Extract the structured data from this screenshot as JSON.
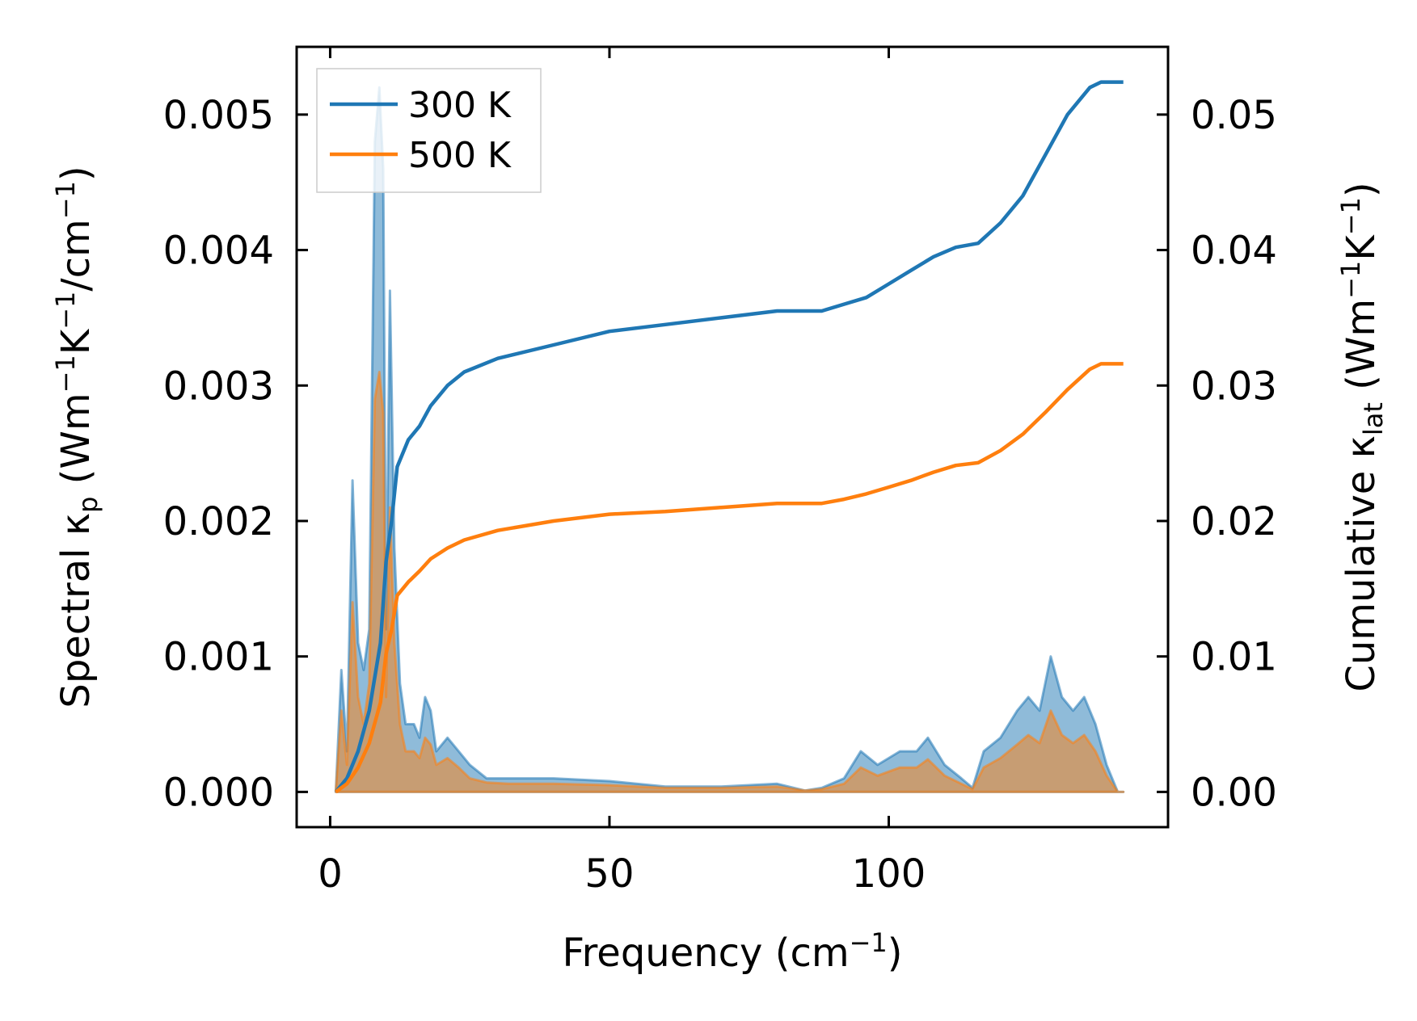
{
  "chart_data": {
    "type": "line",
    "xlabel": "Frequency (cm⁻¹)",
    "ylabel_left": "Spectral κₚ (Wm⁻¹K⁻¹/cm⁻¹)",
    "ylabel_right": "Cumulative κ_lat (Wm⁻¹K⁻¹)",
    "xlim": [
      -6,
      150
    ],
    "ylim_left": [
      -0.00026,
      0.0055
    ],
    "ylim_right": [
      -0.0026,
      0.055
    ],
    "xticks": [
      0,
      50,
      100
    ],
    "xtick_labels": [
      "0",
      "50",
      "100"
    ],
    "yticks_left": [
      0,
      0.001,
      0.002,
      0.003,
      0.004,
      0.005
    ],
    "ytick_labels_left": [
      "0.000",
      "0.001",
      "0.002",
      "0.003",
      "0.004",
      "0.005"
    ],
    "yticks_right": [
      0,
      0.01,
      0.02,
      0.03,
      0.04,
      0.05
    ],
    "ytick_labels_right": [
      "0.00",
      "0.01",
      "0.02",
      "0.03",
      "0.04",
      "0.05"
    ],
    "legend_position": "top-left",
    "grid": false,
    "series": [
      {
        "name": "300 K",
        "color": "#1f77b4",
        "spectral": [
          [
            1,
            0
          ],
          [
            2,
            0.0009
          ],
          [
            3,
            0.0003
          ],
          [
            4,
            0.0023
          ],
          [
            5,
            0.0011
          ],
          [
            6,
            0.0009
          ],
          [
            7,
            0.0012
          ],
          [
            8,
            0.0048
          ],
          [
            8.8,
            0.0052
          ],
          [
            9.5,
            0.0046
          ],
          [
            10,
            0.0012
          ],
          [
            10.7,
            0.0037
          ],
          [
            11.5,
            0.0018
          ],
          [
            12.5,
            0.0008
          ],
          [
            13.5,
            0.0005
          ],
          [
            15,
            0.0005
          ],
          [
            16,
            0.0004
          ],
          [
            17,
            0.0007
          ],
          [
            18,
            0.0006
          ],
          [
            19,
            0.0003
          ],
          [
            21,
            0.0004
          ],
          [
            23,
            0.0003
          ],
          [
            25,
            0.0002
          ],
          [
            28,
            0.0001
          ],
          [
            32,
            0.0001
          ],
          [
            40,
            0.0001
          ],
          [
            50,
            8e-05
          ],
          [
            60,
            4e-05
          ],
          [
            70,
            4e-05
          ],
          [
            80,
            6e-05
          ],
          [
            85,
            1e-05
          ],
          [
            88,
            3e-05
          ],
          [
            92,
            0.0001
          ],
          [
            95,
            0.0003
          ],
          [
            98,
            0.0002
          ],
          [
            102,
            0.0003
          ],
          [
            105,
            0.0003
          ],
          [
            107,
            0.0004
          ],
          [
            110,
            0.0002
          ],
          [
            113,
            0.0001
          ],
          [
            115,
            3e-05
          ],
          [
            117,
            0.0003
          ],
          [
            120,
            0.0004
          ],
          [
            123,
            0.0006
          ],
          [
            125,
            0.0007
          ],
          [
            127,
            0.0006
          ],
          [
            129,
            0.001
          ],
          [
            131,
            0.0007
          ],
          [
            133,
            0.0006
          ],
          [
            135,
            0.0007
          ],
          [
            137,
            0.0005
          ],
          [
            139,
            0.0002
          ],
          [
            141,
            0
          ],
          [
            142,
            0
          ]
        ],
        "cumulative": [
          [
            1,
            0
          ],
          [
            3,
            0.001
          ],
          [
            5,
            0.003
          ],
          [
            7,
            0.006
          ],
          [
            9,
            0.011
          ],
          [
            10,
            0.017
          ],
          [
            11,
            0.02
          ],
          [
            12,
            0.024
          ],
          [
            14,
            0.026
          ],
          [
            16,
            0.027
          ],
          [
            18,
            0.0285
          ],
          [
            21,
            0.03
          ],
          [
            24,
            0.031
          ],
          [
            30,
            0.032
          ],
          [
            40,
            0.033
          ],
          [
            50,
            0.034
          ],
          [
            60,
            0.0345
          ],
          [
            70,
            0.035
          ],
          [
            80,
            0.0355
          ],
          [
            88,
            0.0355
          ],
          [
            92,
            0.036
          ],
          [
            96,
            0.0365
          ],
          [
            100,
            0.0375
          ],
          [
            104,
            0.0385
          ],
          [
            108,
            0.0395
          ],
          [
            112,
            0.0402
          ],
          [
            116,
            0.0405
          ],
          [
            120,
            0.042
          ],
          [
            124,
            0.044
          ],
          [
            128,
            0.047
          ],
          [
            132,
            0.05
          ],
          [
            136,
            0.052
          ],
          [
            138,
            0.0524
          ],
          [
            142,
            0.0524
          ]
        ]
      },
      {
        "name": "500 K",
        "color": "#ff7f0e",
        "spectral": [
          [
            1,
            0
          ],
          [
            2,
            0.0006
          ],
          [
            3,
            0.0002
          ],
          [
            4,
            0.0014
          ],
          [
            5,
            0.0007
          ],
          [
            6,
            0.0005
          ],
          [
            7,
            0.0008
          ],
          [
            8,
            0.0029
          ],
          [
            8.8,
            0.0031
          ],
          [
            9.5,
            0.0028
          ],
          [
            10,
            0.0007
          ],
          [
            10.7,
            0.0021
          ],
          [
            11.5,
            0.0011
          ],
          [
            12.5,
            0.0005
          ],
          [
            13.5,
            0.0003
          ],
          [
            15,
            0.0003
          ],
          [
            16,
            0.00025
          ],
          [
            17,
            0.0004
          ],
          [
            18,
            0.00035
          ],
          [
            19,
            0.0002
          ],
          [
            21,
            0.00025
          ],
          [
            23,
            0.00018
          ],
          [
            25,
            0.0001
          ],
          [
            28,
            7e-05
          ],
          [
            32,
            6e-05
          ],
          [
            40,
            6e-05
          ],
          [
            50,
            5e-05
          ],
          [
            60,
            3e-05
          ],
          [
            70,
            3e-05
          ],
          [
            80,
            4e-05
          ],
          [
            85,
            1e-05
          ],
          [
            88,
            2e-05
          ],
          [
            92,
            6e-05
          ],
          [
            95,
            0.00018
          ],
          [
            98,
            0.00012
          ],
          [
            102,
            0.00018
          ],
          [
            105,
            0.00018
          ],
          [
            107,
            0.00024
          ],
          [
            110,
            0.00012
          ],
          [
            113,
            6e-05
          ],
          [
            115,
            2e-05
          ],
          [
            117,
            0.00018
          ],
          [
            120,
            0.00025
          ],
          [
            123,
            0.00035
          ],
          [
            125,
            0.00042
          ],
          [
            127,
            0.00036
          ],
          [
            129,
            0.0006
          ],
          [
            131,
            0.00042
          ],
          [
            133,
            0.00036
          ],
          [
            135,
            0.00042
          ],
          [
            137,
            0.0003
          ],
          [
            139,
            0.00012
          ],
          [
            141,
            0
          ],
          [
            142,
            0
          ]
        ],
        "cumulative": [
          [
            1,
            0
          ],
          [
            3,
            0.0006
          ],
          [
            5,
            0.0018
          ],
          [
            7,
            0.0036
          ],
          [
            9,
            0.0066
          ],
          [
            10,
            0.0102
          ],
          [
            11,
            0.012
          ],
          [
            12,
            0.0145
          ],
          [
            14,
            0.0155
          ],
          [
            16,
            0.0163
          ],
          [
            18,
            0.0172
          ],
          [
            21,
            0.018
          ],
          [
            24,
            0.0186
          ],
          [
            30,
            0.0193
          ],
          [
            40,
            0.02
          ],
          [
            50,
            0.0205
          ],
          [
            60,
            0.0207
          ],
          [
            70,
            0.021
          ],
          [
            80,
            0.0213
          ],
          [
            88,
            0.0213
          ],
          [
            92,
            0.0216
          ],
          [
            96,
            0.022
          ],
          [
            100,
            0.0225
          ],
          [
            104,
            0.023
          ],
          [
            108,
            0.0236
          ],
          [
            112,
            0.0241
          ],
          [
            116,
            0.0243
          ],
          [
            120,
            0.0252
          ],
          [
            124,
            0.0264
          ],
          [
            128,
            0.028
          ],
          [
            132,
            0.0297
          ],
          [
            136,
            0.0312
          ],
          [
            138,
            0.0316
          ],
          [
            142,
            0.0316
          ]
        ]
      }
    ]
  }
}
